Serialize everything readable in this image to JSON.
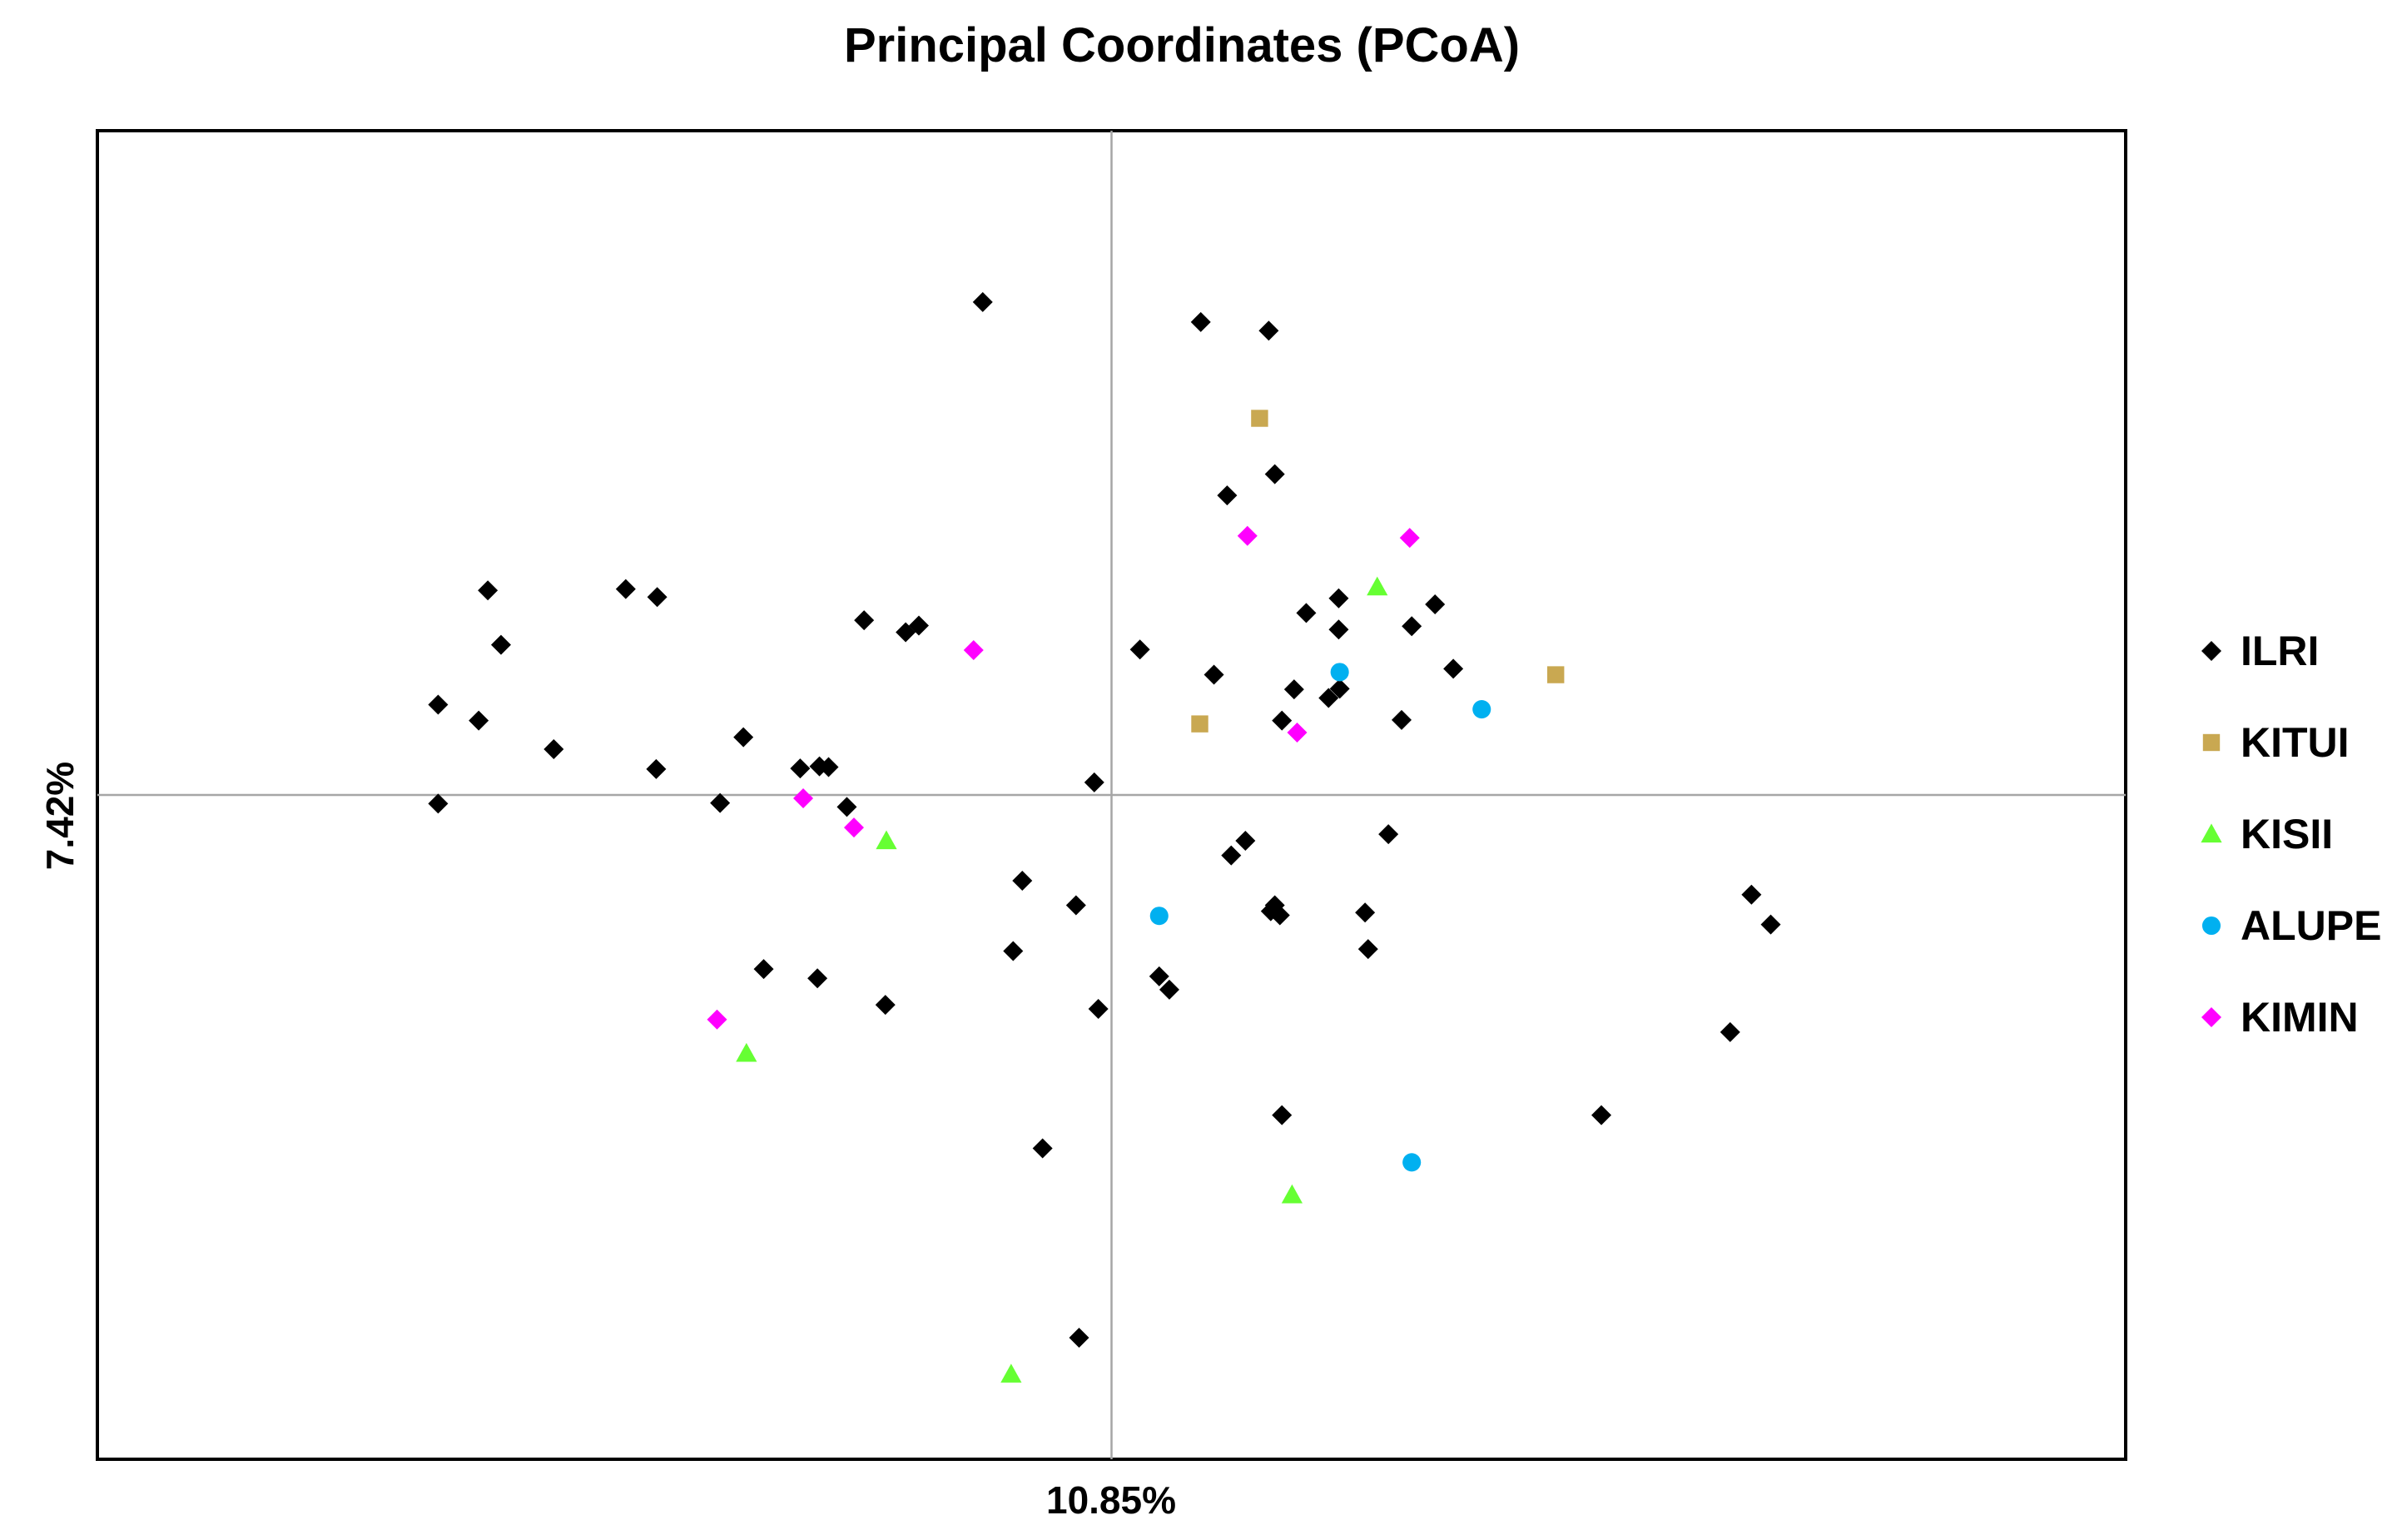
{
  "chart_data": {
    "type": "scatter",
    "title": "Principal Coordinates (PCoA)",
    "xlabel": "10.85%",
    "ylabel": "7.42%",
    "xlim": [
      -1.0,
      1.0
    ],
    "ylim": [
      -1.0,
      1.0
    ],
    "grid": false,
    "crosshair_at_origin": true,
    "legend_position": "right",
    "series": [
      {
        "name": "ILRI",
        "marker": "diamond",
        "color": "#000000",
        "points": [
          [
            -0.127,
            0.742
          ],
          [
            0.088,
            0.712
          ],
          [
            0.155,
            0.699
          ],
          [
            0.161,
            0.483
          ],
          [
            0.114,
            0.451
          ],
          [
            -0.615,
            0.308
          ],
          [
            -0.479,
            0.31
          ],
          [
            -0.448,
            0.298
          ],
          [
            -0.664,
            0.136
          ],
          [
            -0.602,
            0.226
          ],
          [
            -0.624,
            0.112
          ],
          [
            -0.55,
            0.069
          ],
          [
            -0.449,
            0.039
          ],
          [
            -0.363,
            0.087
          ],
          [
            -0.386,
            -0.012
          ],
          [
            -0.664,
            -0.013
          ],
          [
            -0.244,
            0.263
          ],
          [
            -0.203,
            0.245
          ],
          [
            -0.19,
            0.255
          ],
          [
            -0.307,
            0.04
          ],
          [
            -0.279,
            0.042
          ],
          [
            -0.261,
            -0.018
          ],
          [
            -0.288,
            0.043
          ],
          [
            -0.017,
            0.019
          ],
          [
            0.028,
            0.219
          ],
          [
            0.101,
            0.181
          ],
          [
            0.192,
            0.274
          ],
          [
            0.224,
            0.296
          ],
          [
            0.224,
            0.249
          ],
          [
            0.296,
            0.254
          ],
          [
            0.319,
            0.287
          ],
          [
            0.337,
            0.19
          ],
          [
            0.18,
            0.159
          ],
          [
            0.225,
            0.16
          ],
          [
            0.214,
            0.146
          ],
          [
            0.286,
            0.113
          ],
          [
            0.168,
            0.112
          ],
          [
            0.132,
            -0.069
          ],
          [
            0.118,
            -0.091
          ],
          [
            0.273,
            -0.059
          ],
          [
            0.25,
            -0.177
          ],
          [
            0.253,
            -0.232
          ],
          [
            0.161,
            -0.166
          ],
          [
            0.166,
            -0.181
          ],
          [
            0.157,
            -0.175
          ],
          [
            -0.088,
            -0.129
          ],
          [
            -0.035,
            -0.166
          ],
          [
            -0.097,
            -0.235
          ],
          [
            0.047,
            -0.273
          ],
          [
            0.057,
            -0.293
          ],
          [
            -0.013,
            -0.322
          ],
          [
            -0.223,
            -0.316
          ],
          [
            -0.29,
            -0.276
          ],
          [
            -0.343,
            -0.262
          ],
          [
            0.631,
            -0.15
          ],
          [
            0.65,
            -0.195
          ],
          [
            0.61,
            -0.357
          ],
          [
            0.483,
            -0.482
          ],
          [
            0.168,
            -0.482
          ],
          [
            -0.068,
            -0.532
          ],
          [
            -0.032,
            -0.817
          ]
        ]
      },
      {
        "name": "KITUI",
        "marker": "square",
        "color": "#C9A851",
        "points": [
          [
            0.146,
            0.567
          ],
          [
            0.438,
            0.181
          ],
          [
            0.087,
            0.107
          ]
        ]
      },
      {
        "name": "KISII",
        "marker": "triangle",
        "color": "#66FF33",
        "points": [
          [
            0.262,
            0.313
          ],
          [
            -0.222,
            -0.069
          ],
          [
            -0.36,
            -0.389
          ],
          [
            0.178,
            -0.602
          ],
          [
            -0.099,
            -0.872
          ]
        ]
      },
      {
        "name": "ALUPE",
        "marker": "circle",
        "color": "#00B0F0",
        "points": [
          [
            0.225,
            0.185
          ],
          [
            0.365,
            0.129
          ],
          [
            0.047,
            -0.182
          ],
          [
            0.296,
            -0.553
          ]
        ]
      },
      {
        "name": "KIMIN",
        "marker": "diamond",
        "color": "#FF00FF",
        "points": [
          [
            0.134,
            0.39
          ],
          [
            0.294,
            0.387
          ],
          [
            -0.136,
            0.218
          ],
          [
            0.183,
            0.094
          ],
          [
            -0.304,
            -0.005
          ],
          [
            -0.254,
            -0.049
          ],
          [
            -0.389,
            -0.338
          ]
        ]
      }
    ]
  }
}
